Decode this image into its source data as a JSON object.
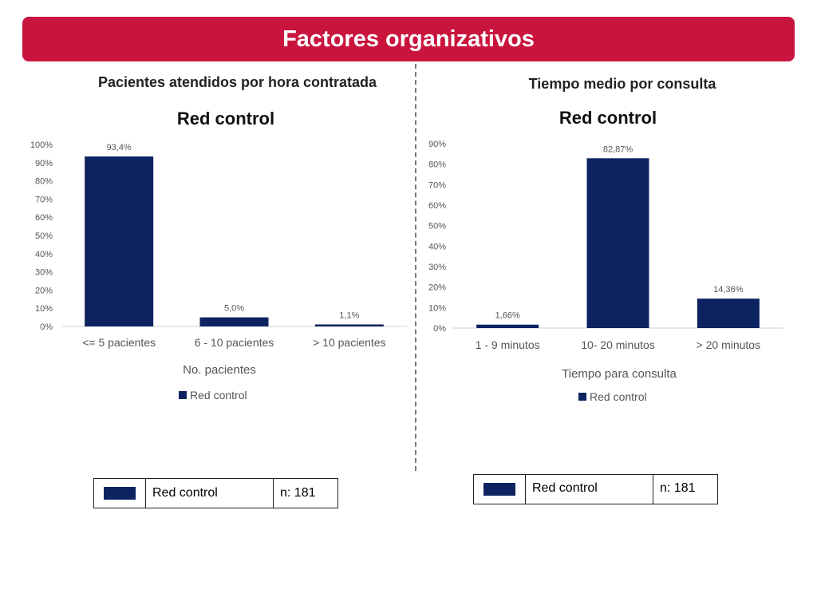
{
  "header": {
    "title": "Factores organizativos"
  },
  "colors": {
    "title_bar": "#c9153e",
    "bar": "#0d2260"
  },
  "left_panel": {
    "heading": "Pacientes atendidos por hora contratada",
    "legend_table": {
      "label": "Red control",
      "n": "n: 181"
    }
  },
  "right_panel": {
    "heading": "Tiempo medio por consulta",
    "legend_table": {
      "label": "Red control",
      "n": "n: 181"
    }
  },
  "chart_data": [
    {
      "type": "bar",
      "title": "Red control",
      "xlabel": "No. pacientes",
      "ylabel": "",
      "categories": [
        "<= 5 pacientes",
        "6 - 10 pacientes",
        "> 10 pacientes"
      ],
      "series": [
        {
          "name": "Red control",
          "values": [
            93.4,
            5.0,
            1.1
          ]
        }
      ],
      "data_labels": [
        "93,4%",
        "5,0%",
        "1,1%"
      ],
      "ylim": [
        0,
        100
      ],
      "yticks": [
        0,
        10,
        20,
        30,
        40,
        50,
        60,
        70,
        80,
        90,
        100
      ],
      "ytick_labels": [
        "0%",
        "10%",
        "20%",
        "30%",
        "40%",
        "50%",
        "60%",
        "70%",
        "80%",
        "90%",
        "100%"
      ],
      "grid": false,
      "legend_position": "bottom"
    },
    {
      "type": "bar",
      "title": "Red control",
      "xlabel": "Tiempo para consulta",
      "ylabel": "",
      "categories": [
        "1 - 9 minutos",
        "10- 20 minutos",
        "> 20 minutos"
      ],
      "series": [
        {
          "name": "Red control",
          "values": [
            1.66,
            82.87,
            14.36
          ]
        }
      ],
      "data_labels": [
        "1,66%",
        "82,87%",
        "14,36%"
      ],
      "ylim": [
        0,
        90
      ],
      "yticks": [
        0,
        10,
        20,
        30,
        40,
        50,
        60,
        70,
        80,
        90
      ],
      "ytick_labels": [
        "0%",
        "10%",
        "20%",
        "30%",
        "40%",
        "50%",
        "60%",
        "70%",
        "80%",
        "90%"
      ],
      "grid": false,
      "legend_position": "bottom"
    }
  ]
}
